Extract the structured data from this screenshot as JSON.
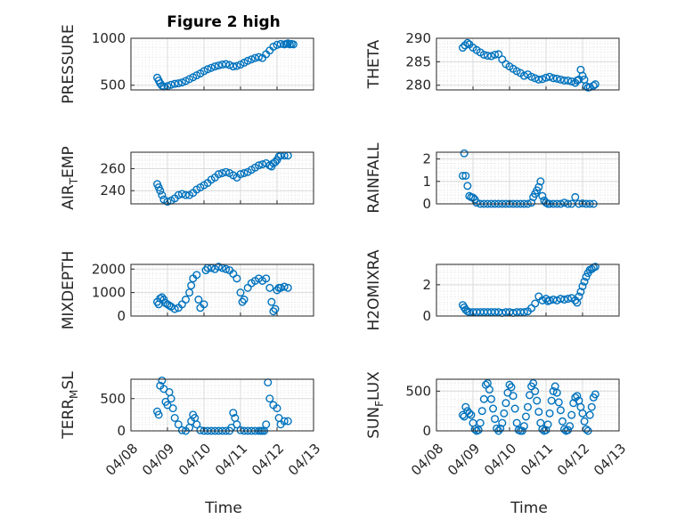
{
  "title": "Figure 2 high",
  "colors": {
    "marker": "#0072BD",
    "axis": "#262626",
    "grid": "#d9d9d9"
  },
  "x_tick_labels": [
    "04/08",
    "04/09",
    "04/10",
    "04/11",
    "04/12",
    "04/13"
  ],
  "xlabel": "Time",
  "chart_data": [
    {
      "type": "scatter",
      "ylabel": "PRESSURE",
      "ylim": [
        450,
        1000
      ],
      "yticks": [
        500,
        1000
      ],
      "x": [
        0.72,
        0.76,
        0.8,
        0.85,
        0.9,
        1.0,
        1.1,
        1.2,
        1.3,
        1.4,
        1.5,
        1.6,
        1.7,
        1.8,
        1.9,
        2.0,
        2.1,
        2.2,
        2.3,
        2.4,
        2.5,
        2.6,
        2.7,
        2.8,
        2.9,
        3.0,
        3.1,
        3.2,
        3.3,
        3.4,
        3.5,
        3.6,
        3.7,
        3.8,
        3.9,
        4.0,
        4.1,
        4.2,
        4.25,
        4.3,
        4.35,
        4.4,
        4.45
      ],
      "y": [
        580,
        550,
        520,
        495,
        485,
        490,
        505,
        515,
        520,
        530,
        545,
        565,
        585,
        605,
        625,
        650,
        670,
        685,
        700,
        710,
        720,
        725,
        715,
        700,
        705,
        720,
        740,
        760,
        775,
        790,
        800,
        790,
        830,
        870,
        910,
        930,
        940,
        935,
        940,
        945,
        935,
        940,
        935
      ]
    },
    {
      "type": "scatter",
      "ylabel": "THETA",
      "ylim": [
        279,
        290
      ],
      "yticks": [
        280,
        285,
        290
      ],
      "x": [
        0.72,
        0.78,
        0.85,
        0.9,
        1.0,
        1.1,
        1.2,
        1.3,
        1.4,
        1.5,
        1.6,
        1.7,
        1.8,
        1.9,
        2.0,
        2.1,
        2.2,
        2.3,
        2.4,
        2.5,
        2.6,
        2.7,
        2.8,
        2.9,
        3.0,
        3.1,
        3.2,
        3.3,
        3.4,
        3.5,
        3.6,
        3.7,
        3.8,
        3.85,
        3.9,
        3.95,
        4.0,
        4.05,
        4.1,
        4.15,
        4.2,
        4.3,
        4.35
      ],
      "y": [
        288,
        288.5,
        289,
        288.7,
        288,
        287.5,
        287,
        286.5,
        286.3,
        286.2,
        286.5,
        286.6,
        285.5,
        284.5,
        284,
        283.5,
        283,
        282.6,
        282,
        282.3,
        281.8,
        281.5,
        281.2,
        281.3,
        281.6,
        281.8,
        281.5,
        281.4,
        281.2,
        281,
        281,
        280.8,
        280.5,
        281,
        281.2,
        283.3,
        282,
        281.2,
        279.8,
        279.5,
        279.6,
        279.9,
        280.2
      ]
    },
    {
      "type": "scatter",
      "ylabel": "AIR_TEMP",
      "ylim": [
        228,
        275
      ],
      "yticks": [
        240,
        260
      ],
      "x": [
        0.72,
        0.76,
        0.8,
        0.85,
        0.9,
        1.0,
        1.1,
        1.2,
        1.3,
        1.4,
        1.5,
        1.6,
        1.7,
        1.8,
        1.9,
        2.0,
        2.1,
        2.2,
        2.3,
        2.4,
        2.5,
        2.6,
        2.7,
        2.8,
        2.9,
        3.0,
        3.1,
        3.2,
        3.3,
        3.4,
        3.5,
        3.6,
        3.7,
        3.8,
        3.85,
        3.9,
        3.95,
        4.0,
        4.05,
        4.1,
        4.2,
        4.3
      ],
      "y": [
        246,
        243,
        240,
        236,
        232,
        230,
        231,
        233,
        236,
        237,
        236,
        236,
        238,
        241,
        243,
        245,
        247,
        250,
        252,
        255,
        256,
        257,
        256,
        254,
        252,
        255,
        256,
        257,
        259,
        261,
        263,
        264,
        265,
        263,
        262,
        265,
        266,
        268,
        271,
        272,
        272,
        272
      ]
    },
    {
      "type": "scatter",
      "ylabel": "RAINFALL",
      "ylim": [
        0,
        2.3
      ],
      "yticks": [
        0,
        1,
        2
      ],
      "x": [
        0.72,
        0.76,
        0.8,
        0.85,
        0.9,
        0.95,
        1.0,
        1.05,
        1.1,
        1.2,
        1.3,
        1.4,
        1.5,
        1.6,
        1.7,
        1.8,
        1.9,
        2.0,
        2.1,
        2.2,
        2.3,
        2.4,
        2.5,
        2.6,
        2.65,
        2.7,
        2.75,
        2.8,
        2.85,
        2.9,
        2.95,
        3.0,
        3.05,
        3.1,
        3.2,
        3.3,
        3.4,
        3.5,
        3.6,
        3.7,
        3.8,
        3.9,
        4.0,
        4.1,
        4.2,
        4.3
      ],
      "y": [
        1.25,
        2.25,
        1.25,
        0.8,
        0.35,
        0.3,
        0.28,
        0.2,
        0.05,
        0,
        0,
        0,
        0,
        0,
        0,
        0,
        0,
        0,
        0,
        0,
        0,
        0,
        0,
        0.05,
        0.3,
        0.45,
        0.6,
        0.75,
        1.0,
        0.35,
        0.15,
        0.05,
        0,
        0,
        0,
        0,
        0,
        0.05,
        0,
        0,
        0.3,
        0,
        0.02,
        0,
        0,
        0
      ]
    },
    {
      "type": "scatter",
      "ylabel": "MIXDEPTH",
      "ylim": [
        0,
        2200
      ],
      "yticks": [
        0,
        1000,
        2000
      ],
      "x": [
        0.72,
        0.76,
        0.8,
        0.85,
        0.9,
        0.95,
        1.0,
        1.05,
        1.1,
        1.2,
        1.3,
        1.4,
        1.5,
        1.6,
        1.65,
        1.7,
        1.8,
        1.85,
        1.9,
        2.0,
        2.05,
        2.1,
        2.2,
        2.3,
        2.4,
        2.5,
        2.6,
        2.7,
        2.8,
        2.9,
        3.0,
        3.05,
        3.1,
        3.2,
        3.3,
        3.4,
        3.5,
        3.6,
        3.7,
        3.8,
        3.85,
        3.9,
        3.95,
        4.0,
        4.05,
        4.1,
        4.2,
        4.3
      ],
      "y": [
        600,
        500,
        750,
        800,
        700,
        550,
        500,
        450,
        400,
        300,
        350,
        500,
        700,
        1000,
        1300,
        1600,
        1750,
        700,
        350,
        500,
        1950,
        2050,
        2050,
        2000,
        2100,
        2050,
        2000,
        1950,
        1800,
        1600,
        1000,
        600,
        700,
        1200,
        1400,
        1500,
        1600,
        1500,
        1600,
        1200,
        600,
        200,
        300,
        1100,
        1200,
        1200,
        1250,
        1200
      ]
    },
    {
      "type": "scatter",
      "ylabel": "H2OMIXRA",
      "ylim": [
        0,
        3.3
      ],
      "yticks": [
        0,
        2
      ],
      "x": [
        0.72,
        0.76,
        0.8,
        0.85,
        0.9,
        1.0,
        1.1,
        1.2,
        1.3,
        1.4,
        1.5,
        1.6,
        1.7,
        1.8,
        1.9,
        2.0,
        2.1,
        2.2,
        2.3,
        2.4,
        2.5,
        2.6,
        2.7,
        2.8,
        2.9,
        3.0,
        3.05,
        3.1,
        3.2,
        3.3,
        3.4,
        3.5,
        3.6,
        3.7,
        3.8,
        3.85,
        3.9,
        3.95,
        4.0,
        4.05,
        4.1,
        4.15,
        4.2,
        4.25,
        4.3,
        4.35
      ],
      "y": [
        0.7,
        0.55,
        0.4,
        0.3,
        0.25,
        0.25,
        0.25,
        0.25,
        0.25,
        0.25,
        0.25,
        0.25,
        0.25,
        0.2,
        0.25,
        0.25,
        0.2,
        0.25,
        0.25,
        0.25,
        0.3,
        0.5,
        0.8,
        1.25,
        1.0,
        1.1,
        0.95,
        1.0,
        1.05,
        1.0,
        1.1,
        1.05,
        1.1,
        1.15,
        1.0,
        0.85,
        1.25,
        1.55,
        1.9,
        2.2,
        2.5,
        2.75,
        2.95,
        3.0,
        3.1,
        3.15
      ]
    },
    {
      "type": "scatter",
      "ylabel": "TERR_MSL",
      "ylim": [
        0,
        800
      ],
      "yticks": [
        0,
        500
      ],
      "x": [
        0.72,
        0.76,
        0.8,
        0.85,
        0.9,
        0.95,
        1.0,
        1.05,
        1.1,
        1.15,
        1.2,
        1.3,
        1.4,
        1.5,
        1.6,
        1.65,
        1.7,
        1.75,
        1.8,
        1.9,
        2.0,
        2.1,
        2.2,
        2.3,
        2.4,
        2.5,
        2.6,
        2.7,
        2.75,
        2.8,
        2.85,
        2.9,
        3.0,
        3.1,
        3.2,
        3.3,
        3.4,
        3.5,
        3.55,
        3.6,
        3.65,
        3.7,
        3.75,
        3.8,
        3.9,
        4.0,
        4.05,
        4.1,
        4.2,
        4.3
      ],
      "y": [
        300,
        250,
        700,
        780,
        650,
        450,
        400,
        600,
        500,
        350,
        200,
        100,
        10,
        0,
        50,
        150,
        250,
        200,
        100,
        10,
        0,
        0,
        0,
        0,
        0,
        0,
        0,
        0,
        50,
        280,
        200,
        100,
        10,
        0,
        0,
        0,
        0,
        0,
        0,
        0,
        0,
        100,
        750,
        500,
        400,
        350,
        200,
        100,
        150,
        150
      ]
    },
    {
      "type": "scatter",
      "ylabel": "SUN_FLUX",
      "ylim": [
        0,
        650
      ],
      "yticks": [
        0,
        500
      ],
      "x": [
        0.72,
        0.76,
        0.8,
        0.85,
        0.9,
        0.95,
        1.0,
        1.05,
        1.1,
        1.15,
        1.2,
        1.25,
        1.3,
        1.35,
        1.4,
        1.45,
        1.5,
        1.55,
        1.6,
        1.65,
        1.7,
        1.75,
        1.8,
        1.85,
        1.9,
        1.95,
        2.0,
        2.05,
        2.1,
        2.15,
        2.2,
        2.25,
        2.3,
        2.35,
        2.4,
        2.45,
        2.5,
        2.55,
        2.6,
        2.65,
        2.7,
        2.75,
        2.8,
        2.85,
        2.9,
        2.95,
        3.0,
        3.05,
        3.1,
        3.15,
        3.2,
        3.25,
        3.3,
        3.35,
        3.4,
        3.45,
        3.5,
        3.55,
        3.6,
        3.65,
        3.7,
        3.75,
        3.8,
        3.85,
        3.9,
        3.95,
        4.0,
        4.05,
        4.1,
        4.15,
        4.2,
        4.25,
        4.3,
        4.35
      ],
      "y": [
        200,
        180,
        300,
        250,
        220,
        200,
        100,
        20,
        0,
        10,
        100,
        250,
        400,
        580,
        600,
        520,
        400,
        280,
        150,
        30,
        0,
        30,
        100,
        220,
        350,
        480,
        580,
        550,
        440,
        280,
        100,
        10,
        0,
        0,
        60,
        180,
        300,
        450,
        560,
        600,
        500,
        380,
        240,
        100,
        20,
        0,
        10,
        80,
        220,
        380,
        500,
        560,
        480,
        360,
        260,
        120,
        20,
        0,
        10,
        60,
        200,
        350,
        420,
        440,
        380,
        300,
        220,
        120,
        20,
        0,
        200,
        300,
        420,
        460
      ]
    }
  ]
}
